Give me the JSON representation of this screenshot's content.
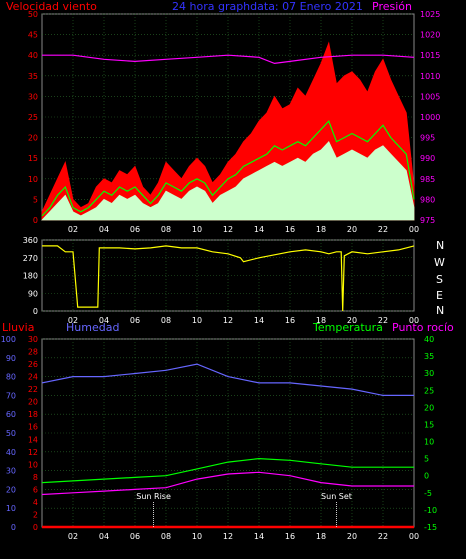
{
  "panels": {
    "wind": {
      "title_left": "Velocidad viento",
      "title_center": "24 hora graphdata: 07 Enero 2021",
      "title_right": "Presión",
      "colors": {
        "left": "#ff0000",
        "center": "#3333ff",
        "right": "#ff00ff"
      }
    },
    "direction": {
      "compass": [
        "N",
        "W",
        "S",
        "E",
        "N"
      ]
    },
    "climate": {
      "title_lluvia": "Lluvia",
      "title_humedad": "Humedad",
      "title_temperatura": "Temperatura",
      "title_rocio": "Punto rocío",
      "colors": {
        "lluvia": "#ff0000",
        "humedad": "#6666ff",
        "temperatura": "#00ff00",
        "rocio": "#ff00ff"
      },
      "annotations": [
        {
          "label": "Sun Rise",
          "hour": 7.2
        },
        {
          "label": "Sun Set",
          "hour": 19.0
        }
      ]
    }
  },
  "chart_data": [
    {
      "type": "line",
      "x_ticks": [
        "02",
        "04",
        "06",
        "08",
        "10",
        "12",
        "14",
        "16",
        "18",
        "20",
        "22",
        "00"
      ],
      "xlim": [
        0,
        24
      ],
      "y_left": {
        "ticks": [
          0,
          5,
          10,
          15,
          20,
          25,
          30,
          35,
          40,
          45,
          50
        ],
        "ylim": [
          0,
          50
        ],
        "color": "#ff0000"
      },
      "y_right": {
        "ticks": [
          975,
          980,
          985,
          990,
          995,
          1000,
          1005,
          1010,
          1015,
          1020,
          1025
        ],
        "ylim": [
          975,
          1025
        ],
        "color": "#ff00ff"
      },
      "series": [
        {
          "color": "#ff0000",
          "axis": "left",
          "style": "fill",
          "x": [
            0,
            0.5,
            1,
            1.5,
            2,
            2.5,
            3,
            3.5,
            4,
            4.5,
            5,
            5.5,
            6,
            6.5,
            7,
            7.5,
            8,
            8.5,
            9,
            9.5,
            10,
            10.5,
            11,
            11.5,
            12,
            12.5,
            13,
            13.5,
            14,
            14.5,
            15,
            15.5,
            16,
            16.5,
            17,
            17.5,
            18,
            18.5,
            19,
            19.5,
            20,
            20.5,
            21,
            21.5,
            22,
            22.5,
            23,
            23.5,
            24
          ],
          "y": [
            2,
            6,
            10,
            14,
            5,
            3,
            4,
            8,
            10,
            9,
            12,
            11,
            13,
            8,
            6,
            9,
            14,
            12,
            10,
            13,
            15,
            13,
            9,
            11,
            14,
            16,
            19,
            21,
            24,
            26,
            30,
            27,
            28,
            32,
            30,
            34,
            38,
            43,
            33,
            35,
            36,
            34,
            31,
            36,
            39,
            34,
            30,
            26,
            8
          ]
        },
        {
          "color": "#00ff00",
          "axis": "left",
          "style": "line",
          "x": [
            0,
            0.5,
            1,
            1.5,
            2,
            2.5,
            3,
            3.5,
            4,
            4.5,
            5,
            5.5,
            6,
            6.5,
            7,
            7.5,
            8,
            8.5,
            9,
            9.5,
            10,
            10.5,
            11,
            11.5,
            12,
            12.5,
            13,
            13.5,
            14,
            14.5,
            15,
            15.5,
            16,
            16.5,
            17,
            17.5,
            18,
            18.5,
            19,
            19.5,
            20,
            20.5,
            21,
            21.5,
            22,
            22.5,
            23,
            23.5,
            24
          ],
          "y": [
            1,
            3,
            6,
            8,
            3,
            2,
            3,
            5,
            7,
            6,
            8,
            7,
            8,
            6,
            4,
            6,
            9,
            8,
            7,
            9,
            10,
            9,
            6,
            8,
            10,
            11,
            13,
            14,
            15,
            16,
            18,
            17,
            18,
            19,
            18,
            20,
            22,
            24,
            19,
            20,
            21,
            20,
            19,
            21,
            23,
            20,
            18,
            16,
            5
          ]
        },
        {
          "color": "#ccffcc",
          "axis": "left",
          "style": "fill",
          "x": [
            0,
            0.5,
            1,
            1.5,
            2,
            2.5,
            3,
            3.5,
            4,
            4.5,
            5,
            5.5,
            6,
            6.5,
            7,
            7.5,
            8,
            8.5,
            9,
            9.5,
            10,
            10.5,
            11,
            11.5,
            12,
            12.5,
            13,
            13.5,
            14,
            14.5,
            15,
            15.5,
            16,
            16.5,
            17,
            17.5,
            18,
            18.5,
            19,
            19.5,
            20,
            20.5,
            21,
            21.5,
            22,
            22.5,
            23,
            23.5,
            24
          ],
          "y": [
            0,
            2,
            4,
            6,
            2,
            1,
            2,
            3,
            5,
            4,
            6,
            5,
            6,
            4,
            3,
            4,
            7,
            6,
            5,
            7,
            8,
            7,
            4,
            6,
            7,
            8,
            10,
            11,
            12,
            13,
            14,
            13,
            14,
            15,
            14,
            16,
            17,
            19,
            15,
            16,
            17,
            16,
            15,
            17,
            18,
            16,
            14,
            12,
            3
          ]
        },
        {
          "color": "#ff00ff",
          "axis": "right",
          "style": "line",
          "x": [
            0,
            2,
            4,
            6,
            8,
            10,
            12,
            14,
            15,
            16,
            18,
            20,
            22,
            24
          ],
          "y": [
            1015,
            1015,
            1014,
            1013.5,
            1014,
            1014.5,
            1015,
            1014.5,
            1013,
            1013.5,
            1014.5,
            1015,
            1015,
            1014.5
          ]
        }
      ]
    },
    {
      "type": "line",
      "x_ticks": [
        "02",
        "04",
        "06",
        "08",
        "10",
        "12",
        "14",
        "16",
        "18",
        "20",
        "22",
        "00"
      ],
      "xlim": [
        0,
        24
      ],
      "y_left": {
        "ticks": [
          0,
          90,
          180,
          270,
          360
        ],
        "ylim": [
          0,
          360
        ]
      },
      "series": [
        {
          "color": "#ffff00",
          "x": [
            0,
            0.6,
            1,
            1.5,
            2,
            2.3,
            2.4,
            3.6,
            3.7,
            4,
            5,
            6,
            7,
            8,
            9,
            10,
            11,
            12,
            12.8,
            13,
            14,
            15,
            16,
            17,
            18,
            18.5,
            19,
            19.3,
            19.4,
            19.5,
            20,
            21,
            22,
            23,
            24
          ],
          "y": [
            330,
            330,
            330,
            300,
            300,
            20,
            20,
            20,
            320,
            320,
            320,
            315,
            320,
            330,
            320,
            320,
            300,
            290,
            270,
            250,
            270,
            285,
            300,
            310,
            300,
            290,
            300,
            300,
            0,
            280,
            300,
            290,
            300,
            310,
            330
          ]
        }
      ]
    },
    {
      "type": "line",
      "x_ticks": [
        "02",
        "04",
        "06",
        "08",
        "10",
        "12",
        "14",
        "16",
        "18",
        "20",
        "22",
        "00"
      ],
      "xlim": [
        0,
        24
      ],
      "y_lluvia": {
        "ticks": [
          0,
          10,
          20,
          30,
          40,
          50,
          60,
          70,
          80,
          90,
          100
        ],
        "ylim": [
          0,
          100
        ]
      },
      "y_humedad": {
        "ticks": [
          0,
          2,
          4,
          6,
          8,
          10,
          12,
          14,
          16,
          18,
          20,
          22,
          24,
          26,
          28,
          30
        ],
        "ylim": [
          0,
          30
        ]
      },
      "y_temp": {
        "ticks": [
          -15,
          -10,
          -5,
          0,
          5,
          10,
          15,
          20,
          25,
          30,
          35,
          40
        ],
        "ylim": [
          -15,
          40
        ]
      },
      "series": [
        {
          "color": "#ff0000",
          "axis": "lluvia",
          "x": [
            0,
            24
          ],
          "y": [
            0,
            0
          ]
        },
        {
          "color": "#6666ff",
          "axis": "humedad",
          "x": [
            0,
            2,
            4,
            6,
            8,
            10,
            12,
            14,
            16,
            18,
            20,
            22,
            24
          ],
          "y": [
            23,
            24,
            24,
            24.5,
            25,
            26,
            24,
            23,
            23,
            22.5,
            22,
            21,
            21
          ]
        },
        {
          "color": "#00ff00",
          "axis": "temp",
          "x": [
            0,
            2,
            4,
            6,
            8,
            10,
            12,
            14,
            16,
            18,
            20,
            22,
            24
          ],
          "y": [
            -2,
            -1.5,
            -1,
            -0.5,
            0,
            2,
            4,
            5,
            4.5,
            3.5,
            2.5,
            2.5,
            2.5
          ]
        },
        {
          "color": "#ff00ff",
          "axis": "temp",
          "x": [
            0,
            2,
            4,
            6,
            8,
            10,
            12,
            14,
            16,
            18,
            20,
            22,
            24
          ],
          "y": [
            -5.5,
            -5,
            -4.5,
            -4,
            -3.5,
            -1,
            0.5,
            1,
            0,
            -2,
            -3,
            -3,
            -3
          ]
        }
      ]
    }
  ]
}
